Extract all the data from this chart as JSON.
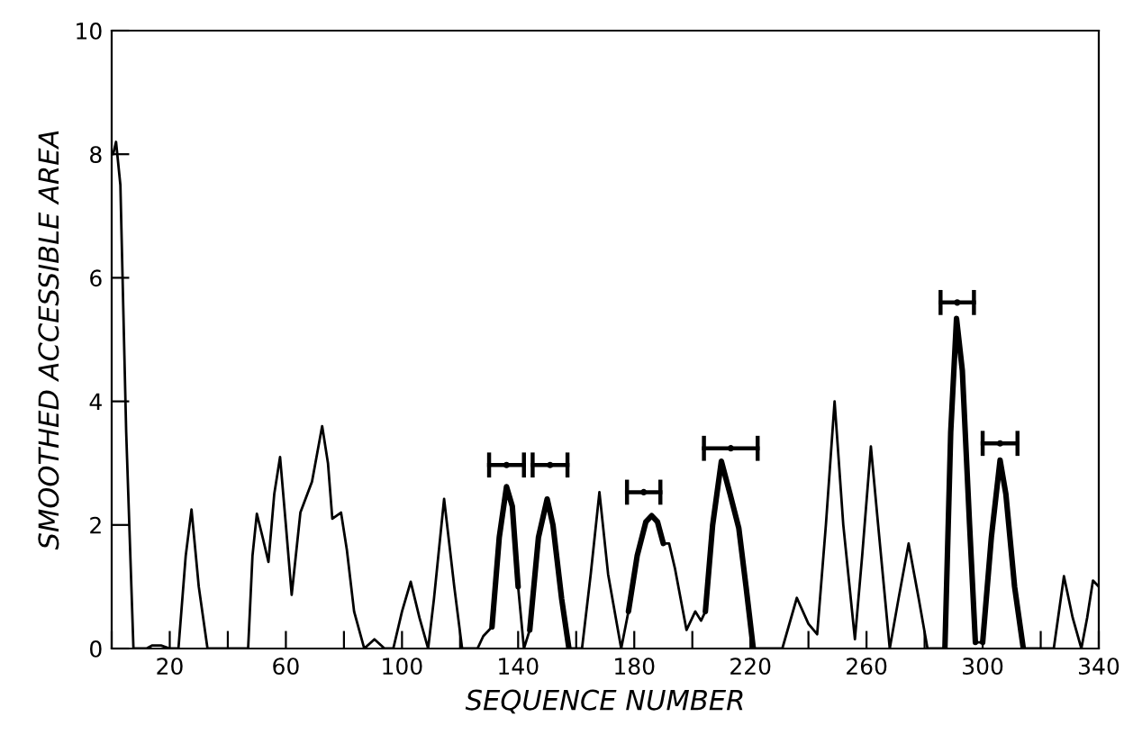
{
  "chart_data": {
    "type": "line",
    "xlabel": "SEQUENCE NUMBER",
    "ylabel": "SMOOTHED ACCESSIBLE AREA",
    "xlim": [
      0,
      340
    ],
    "ylim": [
      0,
      10
    ],
    "xticks": [
      {
        "value": 0,
        "label": null
      },
      20,
      {
        "value": 40,
        "label": null
      },
      60,
      {
        "value": 80,
        "label": null
      },
      100,
      {
        "value": 120,
        "label": null
      },
      140,
      {
        "value": 160,
        "label": null
      },
      180,
      {
        "value": 200,
        "label": null
      },
      220,
      {
        "value": 240,
        "label": null
      },
      260,
      {
        "value": 280,
        "label": null
      },
      300,
      {
        "value": 320,
        "label": null
      },
      340
    ],
    "yticks": [
      0,
      2,
      4,
      6,
      8,
      10
    ],
    "grid": false,
    "legend": false,
    "series": [
      {
        "color": "#000000",
        "x": [
          0.5,
          1.5,
          3,
          5,
          7.5,
          12,
          14,
          17,
          20,
          23,
          25.5,
          27.5,
          30,
          33,
          47,
          48.5,
          50,
          52,
          54,
          56,
          58,
          60,
          62,
          65,
          69,
          72.5,
          74.5,
          76,
          79,
          81,
          83.5,
          87,
          90.5,
          94,
          97,
          100,
          103,
          106,
          109,
          111,
          114.5,
          118,
          120.7,
          126,
          128,
          131,
          133.5,
          136,
          138,
          140,
          142,
          144,
          147,
          150,
          152,
          155,
          157.5,
          162,
          165,
          168,
          171,
          175.5,
          178,
          181,
          184,
          186,
          188,
          190,
          192,
          194,
          198,
          201,
          203,
          204.5,
          207,
          210,
          213,
          216,
          218.5,
          221,
          231,
          236,
          240,
          243,
          246,
          249,
          252,
          256,
          258.5,
          261.5,
          264,
          268,
          271,
          274.5,
          278,
          281,
          287,
          289,
          291,
          293,
          295.5,
          297.5,
          300,
          303,
          306,
          308,
          311,
          314,
          324.5,
          328,
          331,
          334,
          336,
          338,
          340
        ],
        "values": [
          8.0,
          8.2,
          7.5,
          3.5,
          0,
          0,
          0.05,
          0.05,
          0,
          0,
          1.5,
          2.25,
          1.0,
          0,
          0,
          1.5,
          2.18,
          1.8,
          1.4,
          2.5,
          3.1,
          2.0,
          0.87,
          2.2,
          2.7,
          3.6,
          3.0,
          2.1,
          2.2,
          1.6,
          0.6,
          0,
          0.15,
          0,
          0,
          0.6,
          1.08,
          0.5,
          0,
          0.8,
          2.42,
          1.0,
          0,
          0,
          0.2,
          0.35,
          1.8,
          2.62,
          2.3,
          1.0,
          0,
          0.3,
          1.8,
          2.42,
          2.0,
          0.8,
          0,
          0,
          1.2,
          2.53,
          1.2,
          0,
          0.6,
          1.5,
          2.05,
          2.15,
          2.05,
          1.7,
          1.7,
          1.3,
          0.3,
          0.6,
          0.45,
          0.6,
          2.0,
          3.03,
          2.5,
          1.95,
          1.0,
          0,
          0,
          0.82,
          0.4,
          0.23,
          2.0,
          4.0,
          2.0,
          0.15,
          1.5,
          3.27,
          2.0,
          0,
          0.8,
          1.7,
          0.8,
          0,
          0,
          3.5,
          5.34,
          4.5,
          2.0,
          0.1,
          0.1,
          1.8,
          3.05,
          2.5,
          1.0,
          0,
          0,
          1.17,
          0.5,
          0,
          0.5,
          1.1,
          1.0
        ]
      },
      {
        "type": "line",
        "color": "#000000",
        "x": [
          131,
          133.5,
          136,
          138,
          140,
          143,
          144,
          147,
          150,
          152,
          155,
          157.5,
          167,
          178,
          181,
          184,
          186,
          188,
          190,
          196,
          204.5,
          207,
          210,
          213,
          216,
          218.5,
          221,
          250,
          287,
          289,
          291,
          293,
          295.5,
          297.5,
          299,
          300,
          303,
          306,
          308,
          311,
          314
        ],
        "values": [
          0.35,
          1.8,
          2.62,
          2.3,
          1.0,
          null,
          0.3,
          1.8,
          2.42,
          2.0,
          0.8,
          0,
          null,
          0.6,
          1.5,
          2.05,
          2.15,
          2.05,
          1.7,
          null,
          0.6,
          2.0,
          3.03,
          2.5,
          1.95,
          1.0,
          0,
          null,
          0,
          3.5,
          5.34,
          4.5,
          2.0,
          0.1,
          null,
          0.1,
          1.8,
          3.05,
          2.5,
          1.0,
          0
        ]
      },
      {
        "type": "scatter",
        "color": "#000000",
        "marker": "none",
        "x": [
          136,
          151,
          183.25,
          213.25,
          291.25,
          306
        ],
        "values": [
          2.97,
          2.97,
          2.53,
          3.24,
          5.6,
          3.32
        ],
        "xerrors": [
          [
            130,
            142
          ],
          [
            145,
            157
          ],
          [
            177.5,
            189
          ],
          [
            204,
            222.5
          ],
          [
            285.5,
            297
          ],
          [
            300,
            312
          ]
        ]
      }
    ]
  }
}
